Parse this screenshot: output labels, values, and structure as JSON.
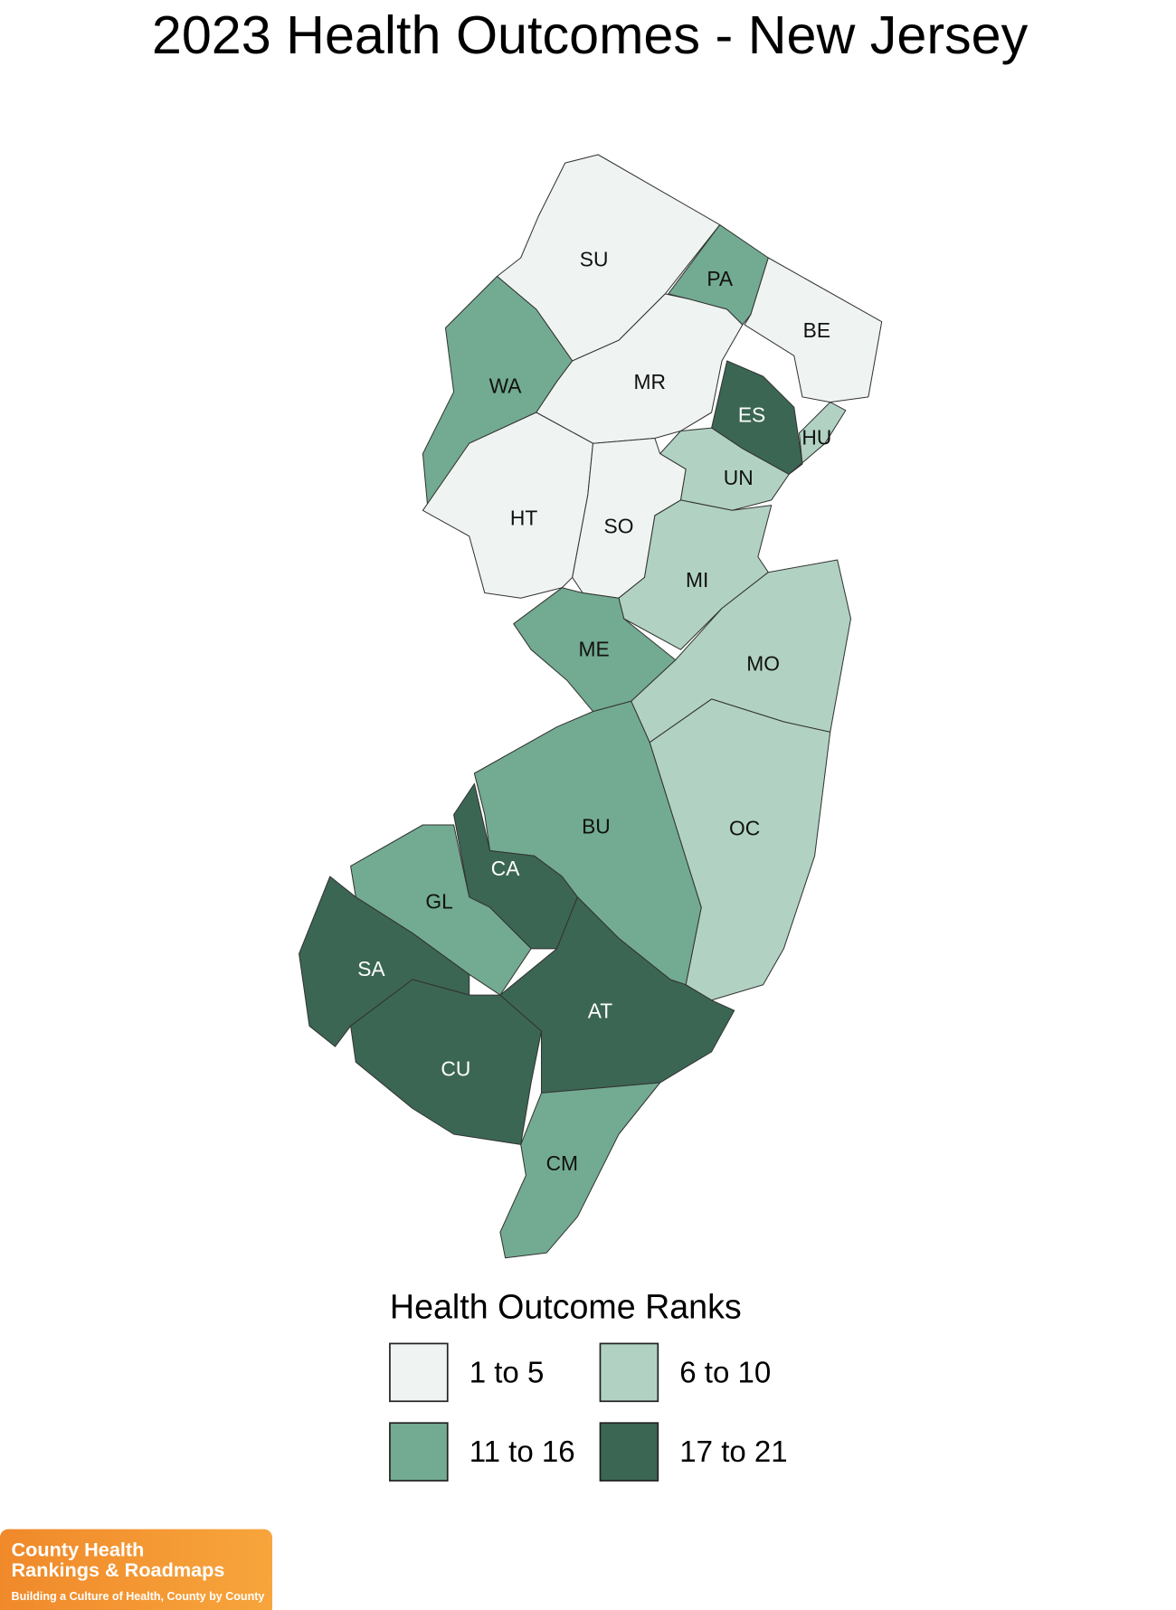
{
  "title": "2023 Health Outcomes - New Jersey",
  "counties": [
    {
      "label": "SU",
      "color": "#eff4f2"
    },
    {
      "label": "PA",
      "color": "#72ab91"
    },
    {
      "label": "BE",
      "color": "#eff4f2"
    },
    {
      "label": "WA",
      "color": "#72ab91"
    },
    {
      "label": "MR",
      "color": "#eff4f2"
    },
    {
      "label": "ES",
      "color": "#3b6653"
    },
    {
      "label": "HU",
      "color": "#b1d2c2"
    },
    {
      "label": "UN",
      "color": "#b1d2c2"
    },
    {
      "label": "HT",
      "color": "#eff4f2"
    },
    {
      "label": "SO",
      "color": "#eff4f2"
    },
    {
      "label": "MI",
      "color": "#b1d2c2"
    },
    {
      "label": "MO",
      "color": "#b1d2c2"
    },
    {
      "label": "ME",
      "color": "#72ab91"
    },
    {
      "label": "OC",
      "color": "#b1d2c2"
    },
    {
      "label": "BU",
      "color": "#72ab91"
    },
    {
      "label": "CA",
      "color": "#3b6653"
    },
    {
      "label": "GL",
      "color": "#72ab91"
    },
    {
      "label": "SA",
      "color": "#3b6653"
    },
    {
      "label": "CU",
      "color": "#3b6653"
    },
    {
      "label": "AT",
      "color": "#3b6653"
    },
    {
      "label": "CM",
      "color": "#72ab91"
    }
  ],
  "legend": {
    "title": "Health Outcome Ranks",
    "items": [
      {
        "label": "1 to 5",
        "color": "#eff4f2"
      },
      {
        "label": "6 to 10",
        "color": "#b1d2c2"
      },
      {
        "label": "11 to 16",
        "color": "#72ab91"
      },
      {
        "label": "17 to 21",
        "color": "#3b6653"
      }
    ]
  },
  "logo": {
    "line1": "County Health",
    "line2": "Rankings & Roadmaps",
    "tagline": "Building a Culture of Health, County by County"
  }
}
